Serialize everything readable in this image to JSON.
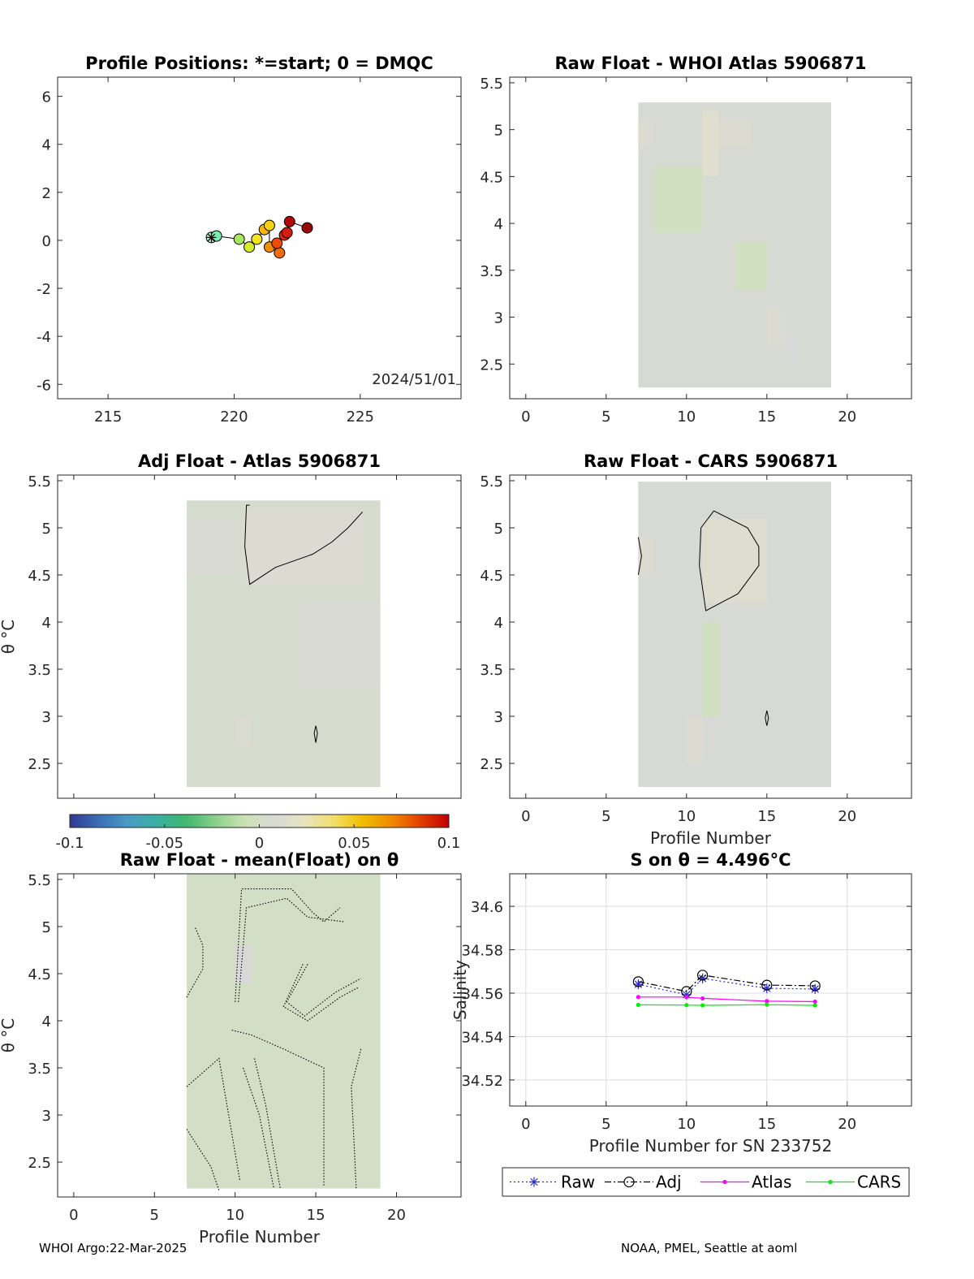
{
  "footer": {
    "left": "WHOI Argo:22-Mar-2025",
    "right": "NOAA, PMEL, Seattle at aoml"
  },
  "colormap": {
    "stops": [
      "#313695",
      "#3a6fb5",
      "#4a9bc4",
      "#38b0a0",
      "#3eb86e",
      "#8cd08c",
      "#cde3b4",
      "#d8d8d8",
      "#e6e4c4",
      "#f2e070",
      "#f0c000",
      "#f08c00",
      "#e44000",
      "#c00000"
    ],
    "ticks": [
      "-0.1",
      "-0.05",
      "0",
      "0.05",
      "0.1"
    ],
    "range": [
      -0.1,
      0.1
    ]
  },
  "chart_data": [
    {
      "id": "positions",
      "type": "scatter",
      "title": "Profile Positions: *=start; 0 = DMQC",
      "annotation": "2024/51/01",
      "xlim": [
        213,
        229
      ],
      "ylim": [
        -6.6,
        6.8
      ],
      "xticks": [
        "215",
        "220",
        "225"
      ],
      "yticks": [
        "-6",
        "-4",
        "-2",
        "0",
        "2",
        "4",
        "6"
      ],
      "xticks_v": [
        215,
        220,
        225
      ],
      "yticks_v": [
        -6,
        -4,
        -2,
        0,
        2,
        4,
        6
      ],
      "points": [
        {
          "x": 219.1,
          "y": 0.12,
          "color": "#b8f0c8"
        },
        {
          "x": 219.3,
          "y": 0.18,
          "color": "#78ecb0"
        },
        {
          "x": 220.2,
          "y": 0.05,
          "color": "#a8e65c"
        },
        {
          "x": 220.6,
          "y": -0.28,
          "color": "#d6ea2e"
        },
        {
          "x": 220.9,
          "y": 0.05,
          "color": "#f4e41c"
        },
        {
          "x": 221.2,
          "y": 0.45,
          "color": "#f8b40c"
        },
        {
          "x": 221.4,
          "y": 0.62,
          "color": "#f4d010"
        },
        {
          "x": 221.4,
          "y": -0.28,
          "color": "#f48c06"
        },
        {
          "x": 221.8,
          "y": -0.52,
          "color": "#f46c04"
        },
        {
          "x": 221.7,
          "y": -0.12,
          "color": "#ec4c08"
        },
        {
          "x": 222.0,
          "y": 0.22,
          "color": "#dc2c10"
        },
        {
          "x": 222.1,
          "y": 0.32,
          "color": "#d41c10"
        },
        {
          "x": 222.2,
          "y": 0.78,
          "color": "#b00808"
        },
        {
          "x": 222.9,
          "y": 0.52,
          "color": "#980606"
        }
      ]
    },
    {
      "id": "raw-whoi",
      "type": "heatmap",
      "title": "Raw Float - WHOI Atlas  5906871",
      "xlim": [
        -1,
        24
      ],
      "ylim": [
        2.13,
        5.56
      ],
      "xticks": [
        "0",
        "5",
        "10",
        "15",
        "20"
      ],
      "yticks": [
        "2.5",
        "3",
        "3.5",
        "4",
        "4.5",
        "5",
        "5.5"
      ],
      "xticks_v": [
        0,
        5,
        10,
        15,
        20
      ],
      "yticks_v": [
        2.5,
        3,
        3.5,
        4,
        4.5,
        5,
        5.5
      ],
      "profiles": [
        7,
        19
      ],
      "theta_range": [
        2.25,
        5.29
      ],
      "value": 0.005,
      "patches": [
        {
          "x0": 7,
          "x1": 8,
          "t0": 4.8,
          "t1": 5.1,
          "v": 0.012
        },
        {
          "x0": 11,
          "x1": 12,
          "t0": 4.5,
          "t1": 5.2,
          "v": 0.015
        },
        {
          "x0": 12,
          "x1": 14,
          "t0": 4.8,
          "t1": 5.1,
          "v": 0.012
        },
        {
          "x0": 15,
          "x1": 16,
          "t0": 2.7,
          "t1": 3.1,
          "v": 0.012
        },
        {
          "x0": 16,
          "x1": 17,
          "t0": 2.5,
          "t1": 2.8,
          "v": 0.008
        },
        {
          "x0": 8,
          "x1": 11,
          "t0": 3.9,
          "t1": 4.6,
          "v": -0.002
        },
        {
          "x0": 13,
          "x1": 15,
          "t0": 3.3,
          "t1": 3.8,
          "v": -0.002
        }
      ]
    },
    {
      "id": "adj-atlas",
      "type": "heatmap",
      "title": "Adj Float - Atlas  5906871",
      "ylabel": "θ °C",
      "xlim": [
        -1,
        24
      ],
      "ylim": [
        2.13,
        5.56
      ],
      "xticks": [],
      "yticks": [
        "2.5",
        "3",
        "3.5",
        "4",
        "4.5",
        "5",
        "5.5"
      ],
      "xticks_v": [
        0,
        5,
        10,
        15,
        20
      ],
      "yticks_v": [
        2.5,
        3,
        3.5,
        4,
        4.5,
        5,
        5.5
      ],
      "profiles": [
        7,
        19
      ],
      "theta_range": [
        2.25,
        5.29
      ],
      "value": 0.003,
      "patches": [
        {
          "x0": 10.5,
          "x1": 18,
          "t0": 4.4,
          "t1": 5.2,
          "v": 0.012
        },
        {
          "x0": 7,
          "x1": 10,
          "t0": 4.5,
          "t1": 5.1,
          "v": 0.01
        },
        {
          "x0": 14,
          "x1": 19,
          "t0": 3.3,
          "t1": 4.2,
          "v": 0.01
        },
        {
          "x0": 10,
          "x1": 11,
          "t0": 2.7,
          "t1": 3.0,
          "v": 0.012
        }
      ],
      "contours": [
        {
          "points": [
            [
              10.9,
              5.24
            ],
            [
              10.7,
              5.24
            ],
            [
              10.6,
              4.8
            ],
            [
              10.9,
              4.4
            ],
            [
              12.5,
              4.58
            ],
            [
              14.8,
              4.72
            ],
            [
              16,
              4.85
            ],
            [
              17,
              5.0
            ],
            [
              17.9,
              5.17
            ]
          ]
        },
        {
          "points": [
            [
              15.0,
              2.9
            ],
            [
              14.9,
              2.82
            ],
            [
              15.0,
              2.72
            ],
            [
              15.1,
              2.82
            ],
            [
              15.0,
              2.9
            ]
          ]
        }
      ]
    },
    {
      "id": "raw-cars",
      "type": "heatmap",
      "title": "Raw Float - CARS  5906871",
      "xlabel": "Profile Number",
      "xlim": [
        -1,
        24
      ],
      "ylim": [
        2.13,
        5.56
      ],
      "xticks": [
        "0",
        "5",
        "10",
        "15",
        "20"
      ],
      "yticks": [
        "2.5",
        "3",
        "3.5",
        "4",
        "4.5",
        "5",
        "5.5"
      ],
      "xticks_v": [
        0,
        5,
        10,
        15,
        20
      ],
      "yticks_v": [
        2.5,
        3,
        3.5,
        4,
        4.5,
        5,
        5.5
      ],
      "profiles": [
        7,
        19
      ],
      "theta_range": [
        2.25,
        5.49
      ],
      "value": 0.006,
      "patches": [
        {
          "x0": 11,
          "x1": 15,
          "t0": 4.2,
          "t1": 5.1,
          "v": 0.014
        },
        {
          "x0": 7,
          "x1": 8,
          "t0": 4.5,
          "t1": 4.9,
          "v": 0.012
        },
        {
          "x0": 11,
          "x1": 12,
          "t0": 3.0,
          "t1": 4.0,
          "v": -0.002
        },
        {
          "x0": 10,
          "x1": 11,
          "t0": 2.5,
          "t1": 3.0,
          "v": 0.012
        }
      ],
      "contours": [
        {
          "points": [
            [
              11.7,
              5.18
            ],
            [
              13.8,
              5.0
            ],
            [
              14.5,
              4.8
            ],
            [
              14.5,
              4.6
            ],
            [
              13.2,
              4.3
            ],
            [
              11.2,
              4.12
            ],
            [
              10.8,
              4.6
            ],
            [
              10.9,
              5.0
            ],
            [
              11.7,
              5.18
            ]
          ]
        },
        {
          "points": [
            [
              7.0,
              4.9
            ],
            [
              7.2,
              4.7
            ],
            [
              7.0,
              4.5
            ]
          ]
        },
        {
          "points": [
            [
              15.0,
              3.06
            ],
            [
              14.9,
              2.98
            ],
            [
              15.0,
              2.9
            ],
            [
              15.1,
              2.98
            ],
            [
              15.0,
              3.06
            ]
          ]
        }
      ]
    },
    {
      "id": "raw-mean",
      "type": "heatmap",
      "title": "Raw Float - mean(Float) on θ",
      "ylabel": "θ °C",
      "xlabel": "Profile Number",
      "xlim": [
        -1,
        24
      ],
      "ylim": [
        2.13,
        5.56
      ],
      "xticks": [
        "0",
        "5",
        "10",
        "15",
        "20"
      ],
      "yticks": [
        "2.5",
        "3",
        "3.5",
        "4",
        "4.5",
        "5",
        "5.5"
      ],
      "xticks_v": [
        0,
        5,
        10,
        15,
        20
      ],
      "yticks_v": [
        2.5,
        3,
        3.5,
        4,
        4.5,
        5,
        5.5
      ],
      "profiles": [
        7,
        19
      ],
      "theta_range": [
        2.22,
        5.56
      ],
      "value": 0.0,
      "patches": [
        {
          "x0": 10,
          "x1": 11,
          "t0": 4.4,
          "t1": 4.8,
          "v": 0.008
        }
      ],
      "contours": [
        {
          "points": [
            [
              7.0,
              4.25
            ],
            [
              8.0,
              4.55
            ],
            [
              8.0,
              4.8
            ],
            [
              7.5,
              5.0
            ]
          ],
          "dotted": true
        },
        {
          "points": [
            [
              10.0,
              4.2
            ],
            [
              10.4,
              5.4
            ],
            [
              13.5,
              5.4
            ],
            [
              14.8,
              5.15
            ],
            [
              15.5,
              5.05
            ],
            [
              16.5,
              5.2
            ]
          ],
          "dotted": true
        },
        {
          "points": [
            [
              10.2,
              4.2
            ],
            [
              10.7,
              5.2
            ],
            [
              13.2,
              5.3
            ],
            [
              14.5,
              5.1
            ],
            [
              16.8,
              5.05
            ]
          ],
          "dotted": true
        },
        {
          "points": [
            [
              14.5,
              4.6
            ],
            [
              13.2,
              4.2
            ],
            [
              14.3,
              4.05
            ],
            [
              16.2,
              4.3
            ],
            [
              17.8,
              4.45
            ]
          ],
          "dotted": true
        },
        {
          "points": [
            [
              14.2,
              4.6
            ],
            [
              13.0,
              4.15
            ],
            [
              14.5,
              4.0
            ],
            [
              16.5,
              4.25
            ],
            [
              17.6,
              4.35
            ]
          ],
          "dotted": true
        },
        {
          "points": [
            [
              9.8,
              3.9
            ],
            [
              11.0,
              3.85
            ],
            [
              13.0,
              3.7
            ],
            [
              15.5,
              3.5
            ],
            [
              15.5,
              2.25
            ]
          ],
          "dotted": true
        },
        {
          "points": [
            [
              7.0,
              3.3
            ],
            [
              9.0,
              3.6
            ],
            [
              10.3,
              2.3
            ]
          ],
          "dotted": true
        },
        {
          "points": [
            [
              7.0,
              2.85
            ],
            [
              8.5,
              2.45
            ],
            [
              9.0,
              2.2
            ]
          ],
          "dotted": true
        },
        {
          "points": [
            [
              10.5,
              3.5
            ],
            [
              11.5,
              3.0
            ],
            [
              12.4,
              2.22
            ]
          ],
          "dotted": true
        },
        {
          "points": [
            [
              11.2,
              3.6
            ],
            [
              11.9,
              3.1
            ],
            [
              12.8,
              2.22
            ]
          ],
          "dotted": true
        },
        {
          "points": [
            [
              17.8,
              3.7
            ],
            [
              17.2,
              3.3
            ],
            [
              17.4,
              2.6
            ],
            [
              17.5,
              2.22
            ]
          ],
          "dotted": true
        }
      ]
    },
    {
      "id": "salinity",
      "type": "line",
      "title": "S on θ = 4.496°C",
      "xlabel": "Profile Number for SN 233752",
      "ylabel": "Salinity",
      "xlim": [
        -1,
        24
      ],
      "ylim": [
        34.508,
        34.615
      ],
      "xticks": [
        "0",
        "5",
        "10",
        "15",
        "20"
      ],
      "yticks": [
        "34.52",
        "34.54",
        "34.56",
        "34.58",
        "34.6"
      ],
      "xticks_v": [
        0,
        5,
        10,
        15,
        20
      ],
      "yticks_v": [
        34.52,
        34.54,
        34.56,
        34.58,
        34.6
      ],
      "grid": true,
      "legend": "bottom",
      "x": [
        7,
        10,
        11,
        15,
        18
      ],
      "series": [
        {
          "name": "Raw",
          "values": [
            34.5641,
            34.5593,
            34.5668,
            34.5622,
            34.5619
          ],
          "color": "#2929d6",
          "dash": "2 3",
          "marker": "star"
        },
        {
          "name": "Adj",
          "values": [
            34.5653,
            34.5608,
            34.5683,
            34.5637,
            34.5634
          ],
          "color": "#000000",
          "dash": "8 3 2 3",
          "marker": "circle"
        },
        {
          "name": "Atlas",
          "values": [
            34.5582,
            34.5582,
            34.5576,
            34.5563,
            34.5561
          ],
          "color": "#ff00ff",
          "dash": "",
          "marker": "dot"
        },
        {
          "name": "CARS",
          "values": [
            34.5546,
            34.5545,
            34.5544,
            34.5547,
            34.5544
          ],
          "color": "#00ee00",
          "dash": "",
          "marker": "dot"
        }
      ]
    }
  ]
}
